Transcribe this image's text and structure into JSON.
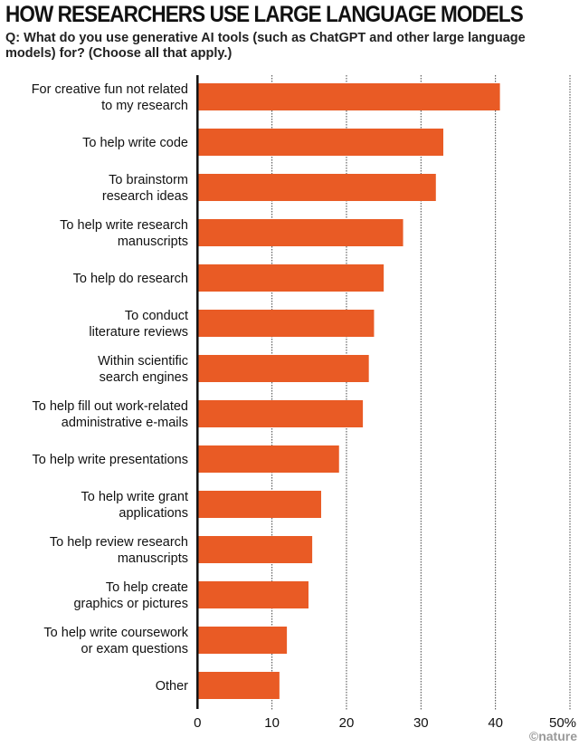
{
  "chart_data": {
    "type": "bar",
    "orientation": "horizontal",
    "title": "HOW RESEARCHERS USE LARGE LANGUAGE MODELS",
    "subtitle": "Q: What do you use generative AI tools (such as ChatGPT and other large language models) for? (Choose all that apply.)",
    "categories": [
      [
        "For creative fun not related",
        "to my research"
      ],
      [
        "To help write code"
      ],
      [
        "To brainstorm",
        "research ideas"
      ],
      [
        "To help write research",
        "manuscripts"
      ],
      [
        "To help do research"
      ],
      [
        "To conduct",
        "literature reviews"
      ],
      [
        "Within scientific",
        "search engines"
      ],
      [
        "To help fill out work-related",
        "administrative e-mails"
      ],
      [
        "To help write presentations"
      ],
      [
        "To help write grant",
        "applications"
      ],
      [
        "To help review research",
        "manuscripts"
      ],
      [
        "To help create",
        "graphics or pictures"
      ],
      [
        "To help write coursework",
        "or exam questions"
      ],
      [
        "Other"
      ]
    ],
    "values": [
      40.6,
      33.0,
      32.0,
      27.6,
      25.0,
      23.7,
      23.0,
      22.2,
      19.0,
      16.6,
      15.4,
      14.9,
      12.0,
      11.0
    ],
    "xlim": [
      0,
      50
    ],
    "xticks": [
      "0",
      "10",
      "20",
      "30",
      "40",
      "50%"
    ],
    "grid": "vertical dotted",
    "bar_color": "#e95b25"
  },
  "credit": "©nature"
}
